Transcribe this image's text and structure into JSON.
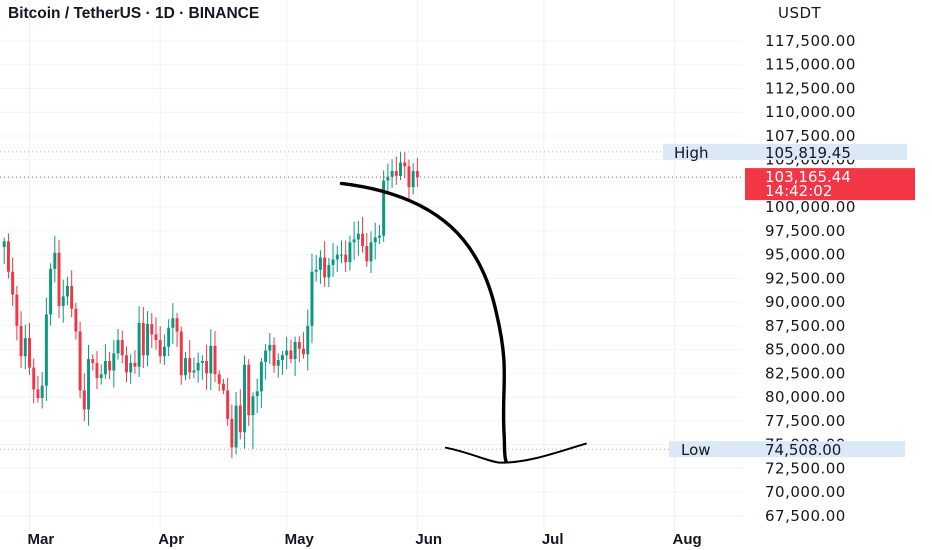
{
  "header": {
    "title": "Bitcoin / TetherUS · 1D · BINANCE",
    "currency": "USDT"
  },
  "chart_data": {
    "type": "candlestick",
    "title": "Bitcoin / TetherUS · 1D · BINANCE",
    "y_unit": "USDT",
    "ylim": [
      66000,
      119500
    ],
    "y_ticks": [
      "117,500.00",
      "115,000.00",
      "112,500.00",
      "110,000.00",
      "107,500.00",
      "105,000.00",
      "100,000.00",
      "97,500.00",
      "95,000.00",
      "92,500.00",
      "90,000.00",
      "87,500.00",
      "85,000.00",
      "82,500.00",
      "80,000.00",
      "77,500.00",
      "75,000.00",
      "72,500.00",
      "70,000.00",
      "67,500.00"
    ],
    "y_tick_values": [
      117500,
      115000,
      112500,
      110000,
      107500,
      105000,
      100000,
      97500,
      95000,
      92500,
      90000,
      87500,
      85000,
      82500,
      80000,
      77500,
      75000,
      72500,
      70000,
      67500
    ],
    "x_labels": [
      "Mar",
      "Apr",
      "May",
      "Jun",
      "Jul",
      "Aug"
    ],
    "x_label_dates": [
      "2025-03-01",
      "2025-04-01",
      "2025-05-01",
      "2025-06-01",
      "2025-07-01",
      "2025-08-01"
    ],
    "x_range": [
      "2025-02-22",
      "2025-08-17"
    ],
    "grid": true,
    "colors": {
      "up": "#089981",
      "down": "#f23645",
      "high_low_bg": "#dbe8f5",
      "last_price_bg": "#f23645",
      "arrow": "#000000"
    },
    "high": {
      "label": "High",
      "value": "105,819.45",
      "price": 105819.45
    },
    "low": {
      "label": "Low",
      "value": "74,508.00",
      "price": 74508.0
    },
    "last_price": {
      "value": "103,165.44",
      "countdown": "14:42:02",
      "price": 103165.44
    },
    "annotation": {
      "type": "hand-drawn arrow",
      "from": [
        "2025-05-14",
        102500
      ],
      "to": [
        "2025-06-22",
        73300
      ]
    },
    "closes": [
      96400,
      93200,
      90800,
      87500,
      84300,
      86200,
      83100,
      80800,
      79900,
      81200,
      88700,
      93500,
      95200,
      89600,
      90600,
      91700,
      89300,
      86900,
      80700,
      78700,
      84000,
      83600,
      82000,
      82400,
      83800,
      82800,
      84600,
      86000,
      84400,
      82600,
      83600,
      83200,
      87800,
      84400,
      87700,
      86600,
      86000,
      84300,
      85300,
      87300,
      88300,
      86900,
      82300,
      84100,
      82600,
      82800,
      83600,
      83800,
      82500,
      85400,
      82400,
      81400,
      80700,
      77700,
      74700,
      79100,
      76300,
      83400,
      78100,
      80100,
      80600,
      83700,
      84900,
      85500,
      83300,
      83900,
      84400,
      84900,
      84000,
      85800,
      85100,
      84500,
      87500,
      93200,
      93400,
      94700,
      92600,
      93900,
      94500,
      95000,
      95000,
      94200,
      96300,
      96600,
      97200,
      95900,
      94300,
      96300,
      96800,
      97000,
      102800,
      103200,
      103800,
      103300,
      104700,
      104300,
      102100,
      103800,
      103165
    ]
  }
}
